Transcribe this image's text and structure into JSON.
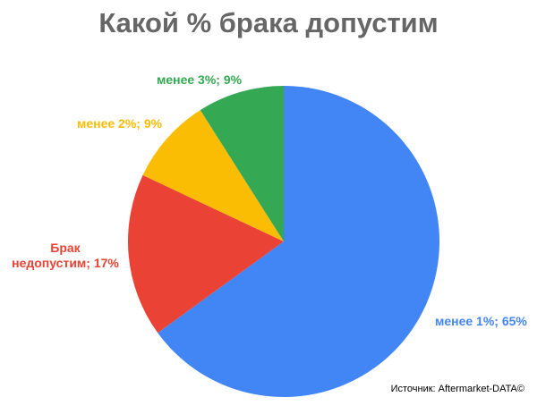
{
  "chart_data": {
    "type": "pie",
    "title": "Какой % брака допустим",
    "slices": [
      {
        "label": "менее 1%; 65%",
        "value": 65,
        "color": "#4285F4"
      },
      {
        "label": "Брак недопустим; 17%",
        "label_lines": [
          "Брак",
          "недопустим; 17%"
        ],
        "value": 17,
        "color": "#EA4335"
      },
      {
        "label": "менее 2%; 9%",
        "value": 9,
        "color": "#FBBC04"
      },
      {
        "label": "менее 3%; 9%",
        "value": 9,
        "color": "#34A853"
      }
    ]
  },
  "source": "Источник: Aftermarket-DATA©"
}
